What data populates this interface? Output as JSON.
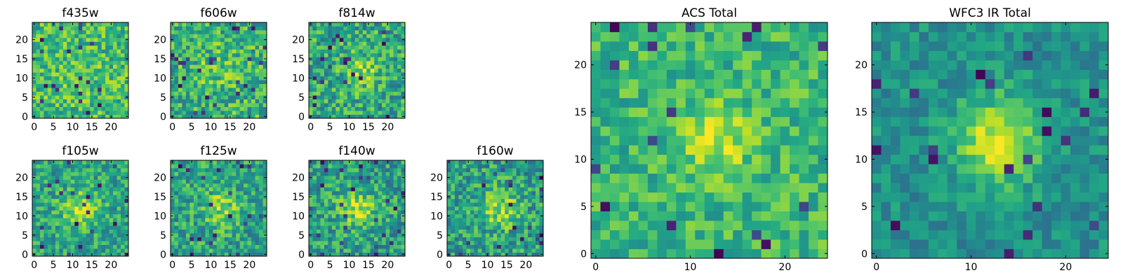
{
  "chart_data": [
    {
      "type": "heatmap",
      "title": "f435w",
      "xticks": [
        "0",
        "5",
        "10",
        "15",
        "20"
      ],
      "yticks": [
        "0",
        "5",
        "10",
        "15",
        "20"
      ],
      "xlim": [
        -0.5,
        24.5
      ],
      "ylim": [
        -0.5,
        24.5
      ],
      "grid_size": 25,
      "colormap": "viridis",
      "seed": 11,
      "blob": {
        "x": 12,
        "y": 11,
        "sigma": 4.0,
        "amp": 0.05
      },
      "noise": 0.22,
      "base": 0.68
    },
    {
      "type": "heatmap",
      "title": "f606w",
      "xticks": [
        "0",
        "5",
        "10",
        "15",
        "20"
      ],
      "yticks": [
        "0",
        "5",
        "10",
        "15",
        "20"
      ],
      "xlim": [
        -0.5,
        24.5
      ],
      "ylim": [
        -0.5,
        24.5
      ],
      "grid_size": 25,
      "colormap": "viridis",
      "seed": 23,
      "blob": {
        "x": 12,
        "y": 13,
        "sigma": 3.5,
        "amp": 0.12
      },
      "noise": 0.24,
      "base": 0.64
    },
    {
      "type": "heatmap",
      "title": "f814w",
      "xticks": [
        "0",
        "5",
        "10",
        "15",
        "20"
      ],
      "yticks": [
        "0",
        "5",
        "10",
        "15",
        "20"
      ],
      "xlim": [
        -0.5,
        24.5
      ],
      "ylim": [
        -0.5,
        24.5
      ],
      "grid_size": 25,
      "colormap": "viridis",
      "seed": 37,
      "blob": {
        "x": 13,
        "y": 12,
        "sigma": 3.0,
        "amp": 0.22
      },
      "noise": 0.24,
      "base": 0.6
    },
    {
      "type": "heatmap",
      "title": "f105w",
      "xticks": [
        "0",
        "5",
        "10",
        "15",
        "20"
      ],
      "yticks": [
        "0",
        "5",
        "10",
        "15",
        "20"
      ],
      "xlim": [
        -0.5,
        24.5
      ],
      "ylim": [
        -0.5,
        24.5
      ],
      "grid_size": 25,
      "colormap": "viridis",
      "seed": 41,
      "blob": {
        "x": 12,
        "y": 12,
        "sigma": 3.5,
        "amp": 0.28
      },
      "noise": 0.2,
      "base": 0.58
    },
    {
      "type": "heatmap",
      "title": "f125w",
      "xticks": [
        "0",
        "5",
        "10",
        "15",
        "20"
      ],
      "yticks": [
        "0",
        "5",
        "10",
        "15",
        "20"
      ],
      "xlim": [
        -0.5,
        24.5
      ],
      "ylim": [
        -0.5,
        24.5
      ],
      "grid_size": 25,
      "colormap": "viridis",
      "seed": 53,
      "blob": {
        "x": 13,
        "y": 12,
        "sigma": 3.5,
        "amp": 0.25
      },
      "noise": 0.22,
      "base": 0.58
    },
    {
      "type": "heatmap",
      "title": "f140w",
      "xticks": [
        "0",
        "5",
        "10",
        "15",
        "20"
      ],
      "yticks": [
        "0",
        "5",
        "10",
        "15",
        "20"
      ],
      "xlim": [
        -0.5,
        24.5
      ],
      "ylim": [
        -0.5,
        24.5
      ],
      "grid_size": 25,
      "colormap": "viridis",
      "seed": 67,
      "blob": {
        "x": 12,
        "y": 12,
        "sigma": 3.5,
        "amp": 0.3
      },
      "noise": 0.22,
      "base": 0.56
    },
    {
      "type": "heatmap",
      "title": "f160w",
      "xticks": [
        "0",
        "5",
        "10",
        "15",
        "20"
      ],
      "yticks": [
        "0",
        "5",
        "10",
        "15",
        "20"
      ],
      "xlim": [
        -0.5,
        24.5
      ],
      "ylim": [
        -0.5,
        24.5
      ],
      "grid_size": 25,
      "colormap": "viridis",
      "seed": 79,
      "blob": {
        "x": 13,
        "y": 12,
        "sigma": 3.5,
        "amp": 0.3
      },
      "noise": 0.23,
      "base": 0.56
    },
    {
      "type": "heatmap",
      "title": "ACS Total",
      "xticks": [
        "0",
        "10",
        "20"
      ],
      "yticks": [
        "0",
        "5",
        "10",
        "15",
        "20"
      ],
      "xlim": [
        -0.5,
        24.5
      ],
      "ylim": [
        -0.5,
        24.5
      ],
      "grid_size": 25,
      "colormap": "viridis",
      "seed": 97,
      "blob": {
        "x": 13,
        "y": 12,
        "sigma": 2.5,
        "amp": 0.28
      },
      "noise": 0.17,
      "base": 0.66
    },
    {
      "type": "heatmap",
      "title": "WFC3 IR Total",
      "xticks": [
        "0",
        "10",
        "20"
      ],
      "yticks": [
        "0",
        "5",
        "10",
        "15",
        "20"
      ],
      "xlim": [
        -0.5,
        24.5
      ],
      "ylim": [
        -0.5,
        24.5
      ],
      "grid_size": 25,
      "colormap": "viridis",
      "seed": 131,
      "blob": {
        "x": 13,
        "y": 12,
        "sigma": 3.2,
        "amp": 0.45
      },
      "noise": 0.13,
      "base": 0.5
    }
  ]
}
